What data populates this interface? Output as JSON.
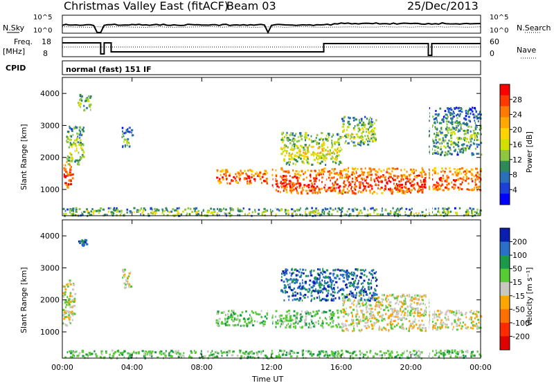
{
  "header": {
    "title": "Christmas Valley East (fitACF)",
    "beam": "Beam 03",
    "date": "25/Dec/2013"
  },
  "status": {
    "nsky_label": "N.Sky",
    "nsearch_label": "N.Search",
    "freq_label_1": "Freq.",
    "freq_label_2": "[MHz]",
    "nave_label": "Nave",
    "cpid_label": "CPID",
    "cpid_value": "normal (fast) 151 IF",
    "noise_ticks": [
      "10^5",
      "10^0"
    ],
    "noise_ticks_right": [
      "10^5",
      "10^0"
    ],
    "freq_ticks": [
      "18",
      "8"
    ],
    "nave_ticks": [
      "60",
      "0"
    ]
  },
  "axes": {
    "xlabel": "Time UT",
    "ylabel": "Slant Range [km]",
    "x_ticks": [
      "00:00",
      "04:00",
      "08:00",
      "12:00",
      "16:00",
      "20:00",
      "00:00"
    ],
    "y_ticks": [
      "1000",
      "2000",
      "3000",
      "4000"
    ]
  },
  "colorbars": {
    "power": {
      "label": "Power [dB]",
      "ticks": [
        "28",
        "24",
        "20",
        "16",
        "12",
        "8",
        "4"
      ],
      "colors": [
        "#ff0000",
        "#ff3a00",
        "#ff7a00",
        "#ffa800",
        "#ffd400",
        "#d2e000",
        "#8ec63f",
        "#2e8b57",
        "#2a6fb8",
        "#1c3fd6",
        "#0000ff"
      ]
    },
    "velocity": {
      "label": "Velocity [m s⁻¹]",
      "ticks": [
        "200",
        "100",
        "50",
        "15",
        "-15",
        "-50",
        "-100",
        "-200"
      ],
      "colors": [
        "#0a1fb0",
        "#2a6fc8",
        "#1a9a4a",
        "#55cc33",
        "#c8c8c0",
        "#ffa500",
        "#ff7000",
        "#ff2a00",
        "#e00000"
      ]
    }
  },
  "chart_data": [
    {
      "type": "heatmap",
      "name": "power",
      "x_range_hours": [
        0,
        24
      ],
      "y_range_km": [
        180,
        4500
      ],
      "clusters": [
        {
          "t": [
            0.0,
            0.6
          ],
          "r": [
            1050,
            1900
          ],
          "level": 0.95
        },
        {
          "t": [
            0.2,
            1.2
          ],
          "r": [
            1800,
            3000
          ],
          "level": 0.3
        },
        {
          "t": [
            0.8,
            1.6
          ],
          "r": [
            3500,
            4000
          ],
          "level": 0.2
        },
        {
          "t": [
            3.4,
            4.0
          ],
          "r": [
            2300,
            3000
          ],
          "level": 0.15
        },
        {
          "t": [
            8.8,
            11.8
          ],
          "r": [
            1200,
            1650
          ],
          "level": 0.9
        },
        {
          "t": [
            12.0,
            21.0
          ],
          "r": [
            900,
            1700
          ],
          "level": 0.95
        },
        {
          "t": [
            12.5,
            16.0
          ],
          "r": [
            1800,
            2800
          ],
          "level": 0.4
        },
        {
          "t": [
            16.0,
            18.0
          ],
          "r": [
            2400,
            3300
          ],
          "level": 0.3
        },
        {
          "t": [
            21.0,
            24.0
          ],
          "r": [
            1000,
            1700
          ],
          "level": 0.9
        },
        {
          "t": [
            21.0,
            24.0
          ],
          "r": [
            2100,
            3600
          ],
          "level": 0.15
        },
        {
          "t": [
            0.0,
            24.0
          ],
          "r": [
            200,
            450
          ],
          "level": 0.25
        }
      ]
    },
    {
      "type": "heatmap",
      "name": "velocity",
      "x_range_hours": [
        0,
        24
      ],
      "y_range_km": [
        180,
        4500
      ],
      "clusters": [
        {
          "t": [
            0.0,
            0.7
          ],
          "r": [
            1200,
            2700
          ],
          "level": 0.45
        },
        {
          "t": [
            0.9,
            1.4
          ],
          "r": [
            3700,
            3900
          ],
          "level": 0.9
        },
        {
          "t": [
            3.4,
            4.0
          ],
          "r": [
            2400,
            3000
          ],
          "level": 0.45
        },
        {
          "t": [
            8.8,
            11.8
          ],
          "r": [
            1200,
            1700
          ],
          "level": 0.65
        },
        {
          "t": [
            12.0,
            16.0
          ],
          "r": [
            1150,
            1700
          ],
          "level": 0.65
        },
        {
          "t": [
            16.0,
            21.0
          ],
          "r": [
            1050,
            2200
          ],
          "level": 0.45
        },
        {
          "t": [
            21.0,
            24.0
          ],
          "r": [
            1100,
            1700
          ],
          "level": 0.45
        },
        {
          "t": [
            12.5,
            18.0
          ],
          "r": [
            2000,
            3000
          ],
          "level": 0.85
        },
        {
          "t": [
            0.0,
            24.0
          ],
          "r": [
            200,
            450
          ],
          "level": 0.62
        }
      ]
    }
  ]
}
